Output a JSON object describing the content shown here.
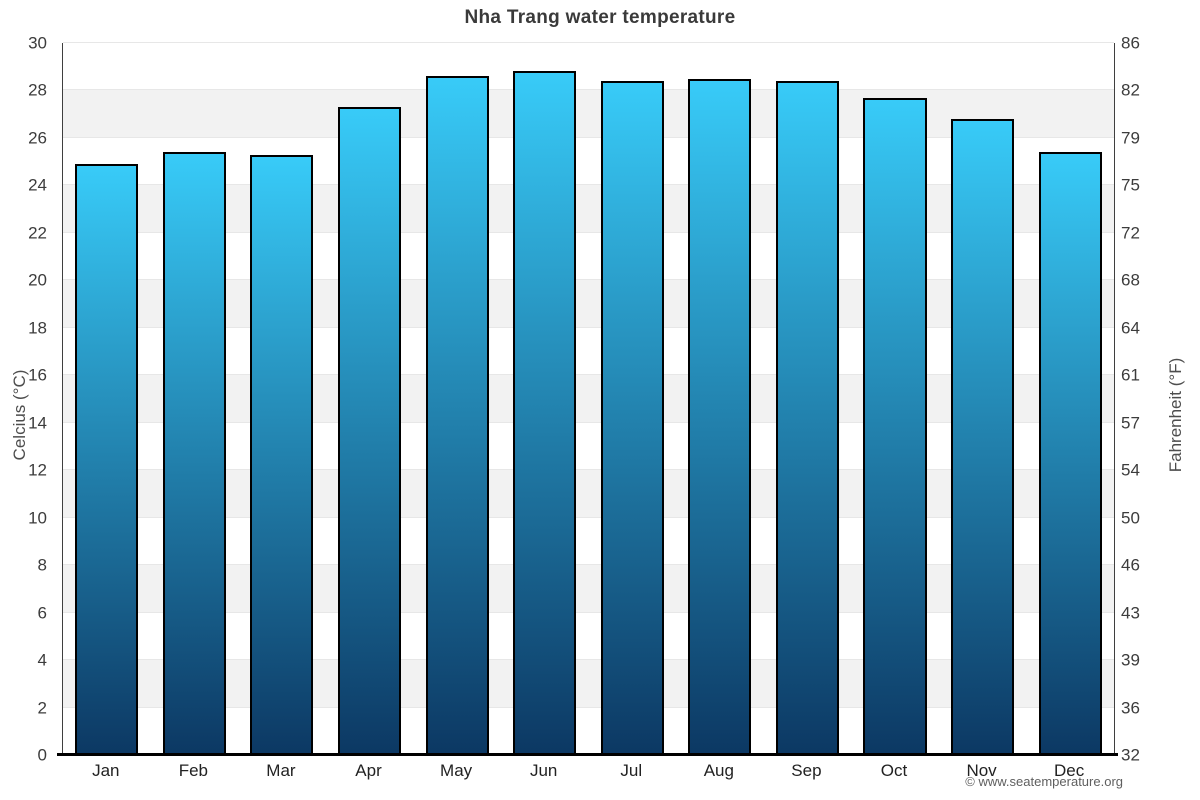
{
  "title": "Nha Trang water temperature",
  "credit": "© www.seatemperature.org",
  "axes": {
    "left_title": "Celcius (°C)",
    "right_title": "Fahrenheit (°F)"
  },
  "colors": {
    "bar_gradient_top": "#38cbf8",
    "bar_gradient_bottom": "#0c3863",
    "bar_border": "#000000",
    "band_gray": "#f2f2f2",
    "gridline": "#e7e7e7",
    "axis_line": "#3f3f3f",
    "bottom_axis": "#000000",
    "title_text": "#3a3a3a",
    "tick_text": "#3c3c3c",
    "credit_text": "#5f5f5f"
  },
  "chart_data": {
    "type": "bar",
    "title": "Nha Trang water temperature",
    "categories": [
      "Jan",
      "Feb",
      "Mar",
      "Apr",
      "May",
      "Jun",
      "Jul",
      "Aug",
      "Sep",
      "Oct",
      "Nov",
      "Dec"
    ],
    "values": [
      24.9,
      25.4,
      25.3,
      27.3,
      28.6,
      28.8,
      28.4,
      28.5,
      28.4,
      27.7,
      26.8,
      25.4
    ],
    "xlabel": "",
    "ylabel_left": "Celcius (°C)",
    "ylabel_right": "Fahrenheit (°F)",
    "ylim": [
      0,
      30
    ],
    "celsius_ticks": [
      0,
      2,
      4,
      6,
      8,
      10,
      12,
      14,
      16,
      18,
      20,
      22,
      24,
      26,
      28,
      30
    ],
    "fahrenheit_tick_labels": [
      "32",
      "36",
      "39",
      "43",
      "46",
      "50",
      "54",
      "57",
      "61",
      "64",
      "68",
      "72",
      "75",
      "79",
      "82",
      "86"
    ],
    "grid": true,
    "legend": false,
    "zebra_bands_celsius": [
      [
        26,
        28
      ],
      [
        22,
        24
      ],
      [
        18,
        20
      ],
      [
        14,
        16
      ],
      [
        10,
        12
      ],
      [
        6,
        8
      ],
      [
        2,
        4
      ]
    ]
  }
}
